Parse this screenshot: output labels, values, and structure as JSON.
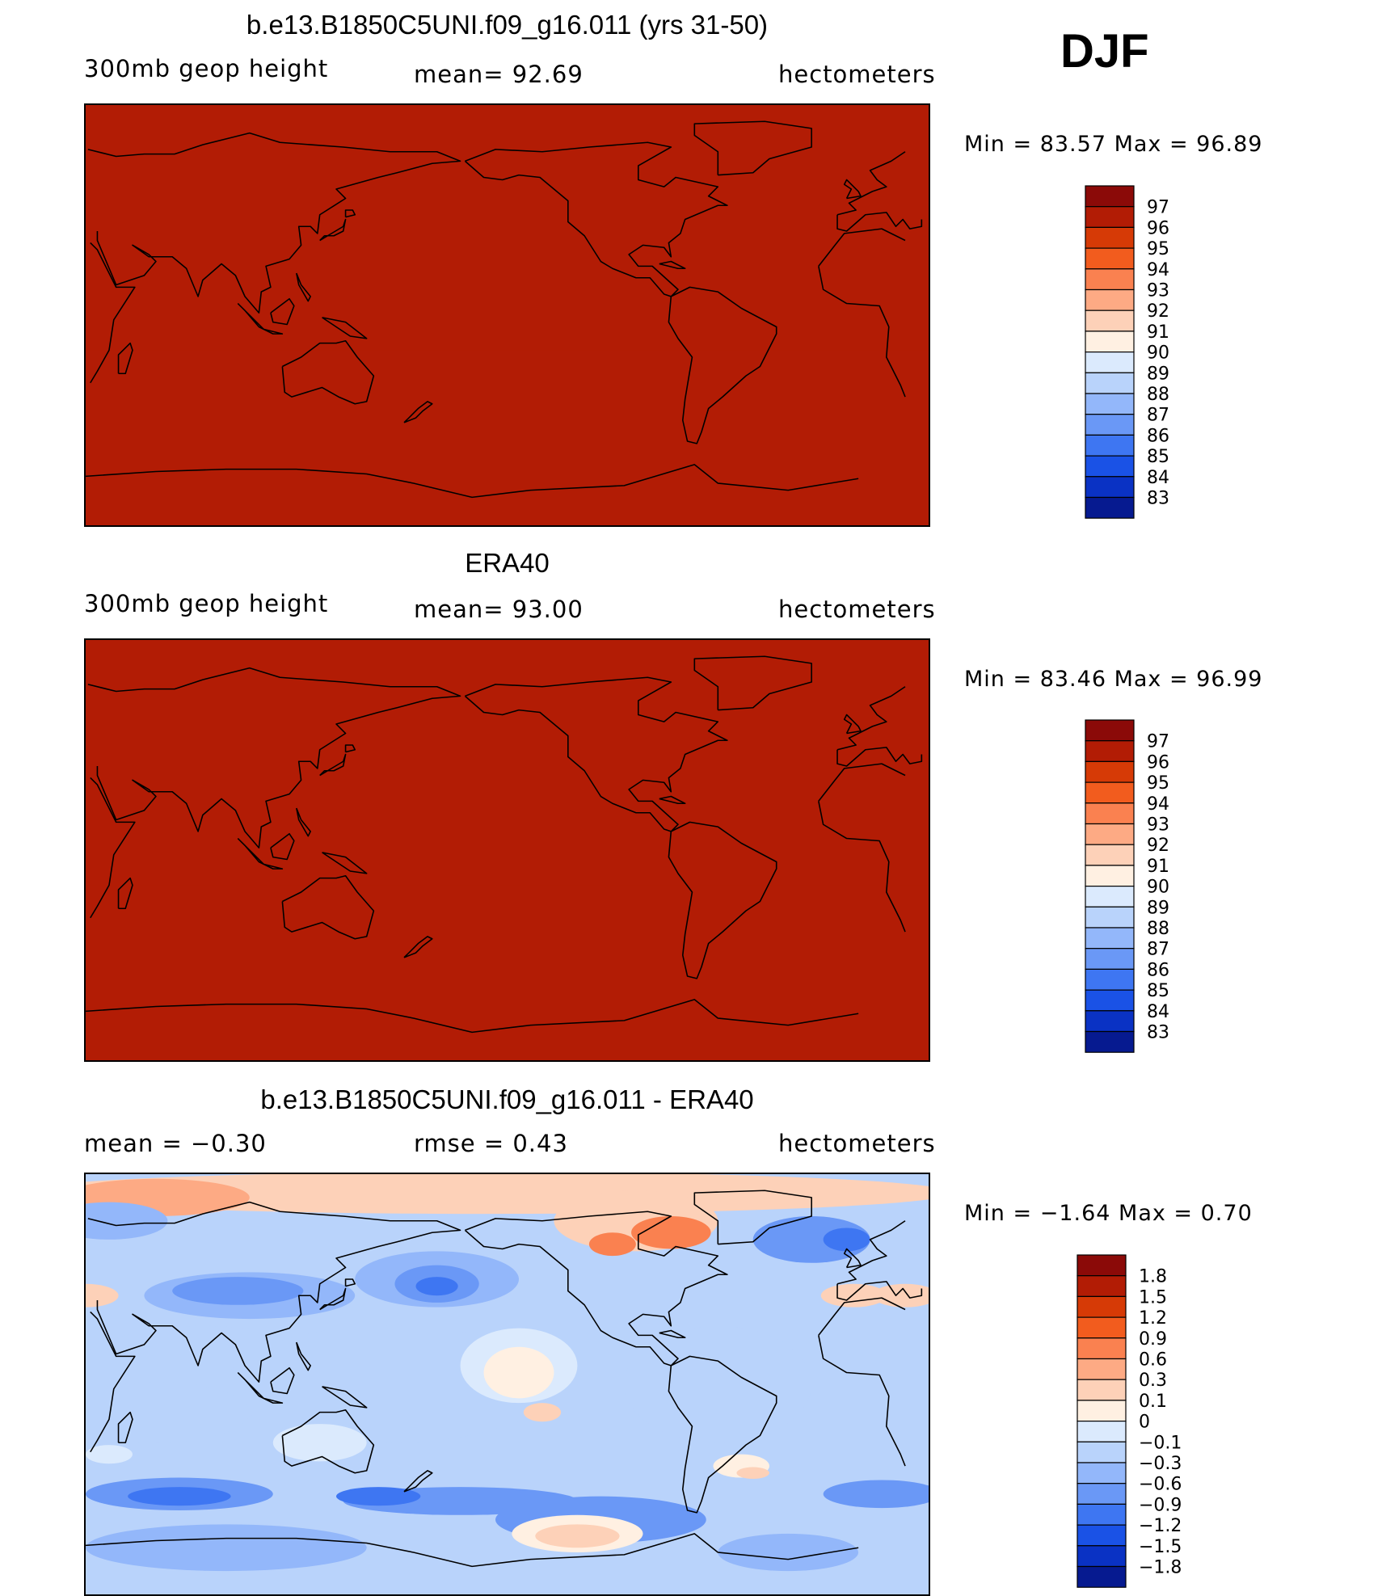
{
  "season": "DJF",
  "panels": [
    {
      "title": "b.e13.B1850C5UNI.f09_g16.011 (yrs 31-50)",
      "left_label": "300mb geop height",
      "center_label": "mean=   92.69",
      "right_label": "hectometers",
      "minmax": "Min =   83.57  Max =   96.89",
      "colorbar": {
        "levels": [
          "97",
          "96",
          "95",
          "94",
          "93",
          "92",
          "91",
          "90",
          "89",
          "88",
          "87",
          "86",
          "85",
          "84",
          "83"
        ],
        "colors": [
          "#8b0a08",
          "#b21c05",
          "#d63a06",
          "#f25c1e",
          "#fa8150",
          "#fdaa84",
          "#fdd1b8",
          "#fff0e2",
          "#dbeafd",
          "#b9d3fb",
          "#93b7fa",
          "#6a98f6",
          "#3e76f2",
          "#1a52e6",
          "#0a32c4",
          "#061a90"
        ]
      },
      "type": "field"
    },
    {
      "title": "ERA40",
      "left_label": "300mb geop height",
      "center_label": "mean=   93.00",
      "right_label": "hectometers",
      "minmax": "Min =   83.46  Max =   96.99",
      "colorbar": {
        "levels": [
          "97",
          "96",
          "95",
          "94",
          "93",
          "92",
          "91",
          "90",
          "89",
          "88",
          "87",
          "86",
          "85",
          "84",
          "83"
        ],
        "colors": [
          "#8b0a08",
          "#b21c05",
          "#d63a06",
          "#f25c1e",
          "#fa8150",
          "#fdaa84",
          "#fdd1b8",
          "#fff0e2",
          "#dbeafd",
          "#b9d3fb",
          "#93b7fa",
          "#6a98f6",
          "#3e76f2",
          "#1a52e6",
          "#0a32c4",
          "#061a90"
        ]
      },
      "type": "field"
    },
    {
      "title": "b.e13.B1850C5UNI.f09_g16.011 - ERA40",
      "left_label": "mean =   −0.30",
      "center_label": "rmse =    0.43",
      "right_label": "hectometers",
      "minmax": "Min =   −1.64  Max =    0.70",
      "colorbar": {
        "levels": [
          "1.8",
          "1.5",
          "1.2",
          "0.9",
          "0.6",
          "0.3",
          "0.1",
          "0",
          "−0.1",
          "−0.3",
          "−0.6",
          "−0.9",
          "−1.2",
          "−1.5",
          "−1.8"
        ],
        "colors": [
          "#8b0a08",
          "#b21c05",
          "#d63a06",
          "#f25c1e",
          "#fa8150",
          "#fdaa84",
          "#fdd1b8",
          "#fff0e2",
          "#dbeafd",
          "#b9d3fb",
          "#93b7fa",
          "#6a98f6",
          "#3e76f2",
          "#1a52e6",
          "#0a32c4",
          "#061a90"
        ]
      },
      "type": "diff"
    }
  ]
}
